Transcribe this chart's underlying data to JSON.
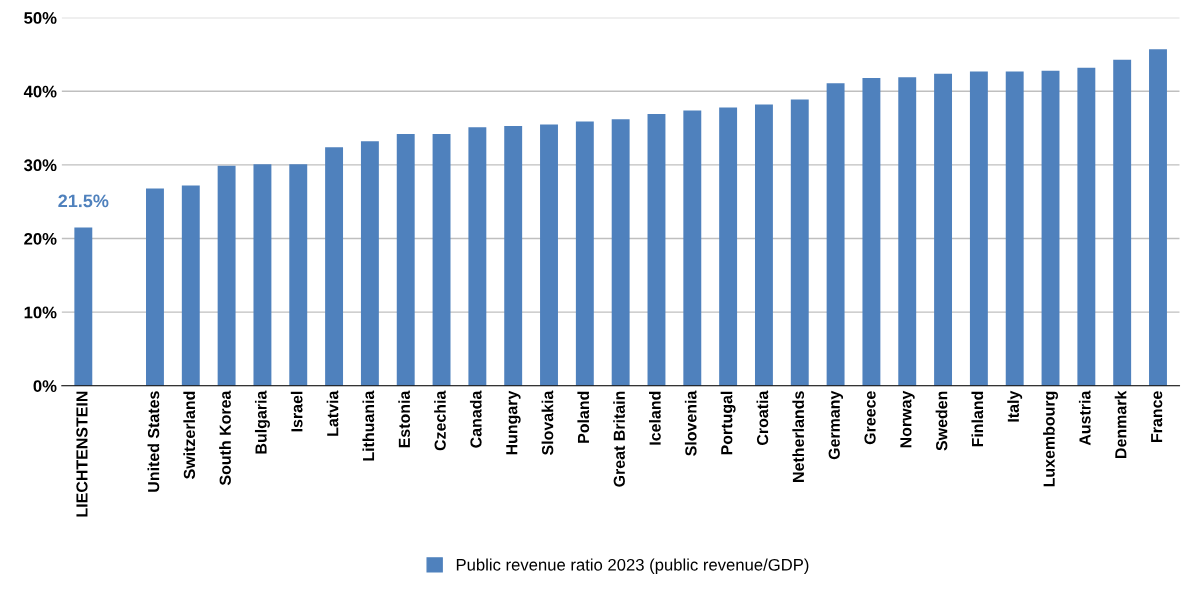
{
  "chart_data": {
    "type": "bar",
    "categories": [
      "LIECHTENSTEIN",
      null,
      "United States",
      "Switzerland",
      "South Korea",
      "Bulgaria",
      "Israel",
      "Latvia",
      "Lithuania",
      "Estonia",
      "Czechia",
      "Canada",
      "Hungary",
      "Slovakia",
      "Poland",
      "Great Britain",
      "Iceland",
      "Slovenia",
      "Portugal",
      "Croatia",
      "Netherlands",
      "Germany",
      "Greece",
      "Norway",
      "Sweden",
      "Finland",
      "Italy",
      "Luxembourg",
      "Austria",
      "Denmark",
      "France"
    ],
    "series": [
      {
        "name": "Public revenue ratio 2023 (public revenue/GDP)",
        "color": "#4f81bd",
        "values": [
          21.5,
          null,
          26.8,
          27.2,
          29.9,
          30.1,
          30.1,
          32.4,
          33.2,
          34.2,
          34.2,
          35.1,
          35.3,
          35.5,
          35.9,
          36.2,
          36.9,
          37.4,
          37.8,
          38.2,
          38.9,
          41.1,
          41.8,
          41.9,
          42.4,
          42.7,
          42.7,
          42.8,
          43.2,
          44.3,
          45.7
        ],
        "value_labels": [
          "21.5%",
          null,
          null,
          null,
          null,
          null,
          null,
          null,
          null,
          null,
          null,
          null,
          null,
          null,
          null,
          null,
          null,
          null,
          null,
          null,
          null,
          null,
          null,
          null,
          null,
          null,
          null,
          null,
          null,
          null,
          null
        ]
      }
    ],
    "ylim": [
      0,
      50
    ],
    "yticks": [
      {
        "value": 0,
        "label": "0%"
      },
      {
        "value": 10,
        "label": "10%"
      },
      {
        "value": 20,
        "label": "20%"
      },
      {
        "value": 30,
        "label": "30%"
      },
      {
        "value": 40,
        "label": "40%"
      },
      {
        "value": 50,
        "label": "50%"
      }
    ],
    "grid": "y",
    "legend": "bottom"
  }
}
